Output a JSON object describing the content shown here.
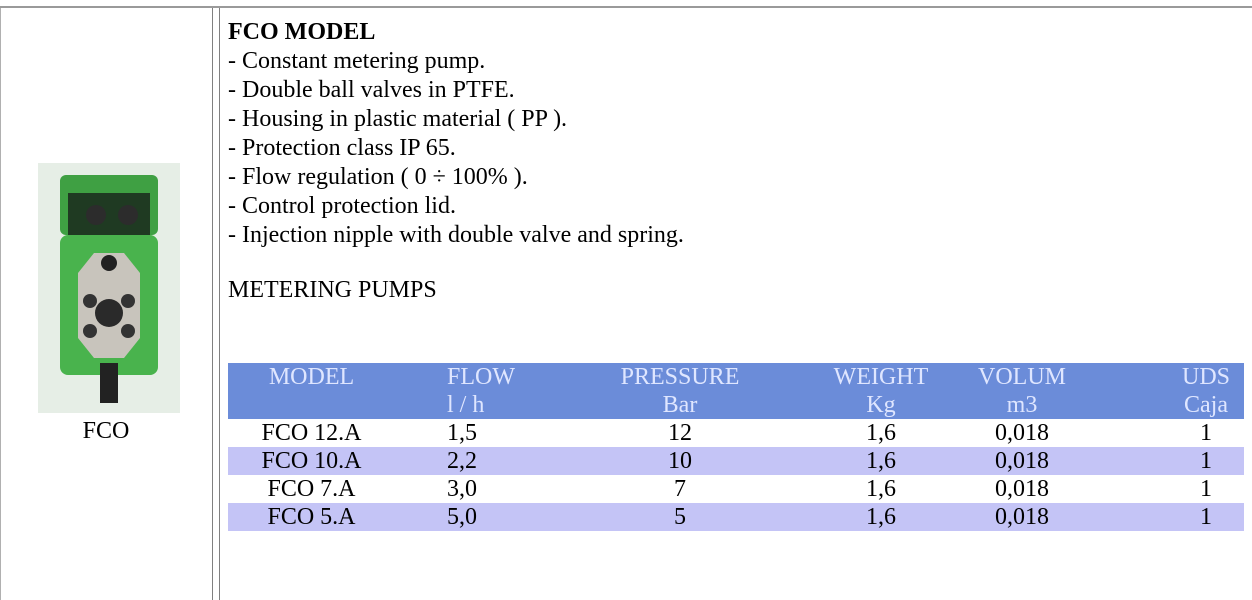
{
  "title": "FCO MODEL",
  "features": [
    "- Constant metering pump.",
    "- Double ball valves in PTFE.",
    "- Housing in plastic material ( PP ).",
    "- Protection class IP 65.",
    "- Flow regulation ( 0 ÷ 100% ).",
    "- Control protection lid.",
    "- Injection nipple with double valve and spring."
  ],
  "image_caption": "FCO",
  "table": {
    "caption": "METERING PUMPS",
    "header": [
      [
        "MODEL",
        "FLOW",
        "PRESSURE",
        "WEIGHT",
        "VOLUM",
        "UDS"
      ],
      [
        "",
        "l / h",
        "Bar",
        "Kg",
        "m3",
        "Caja"
      ]
    ],
    "rows": [
      [
        "FCO 12.A",
        "1,5",
        "12",
        "1,6",
        "0,018",
        "1"
      ],
      [
        "FCO 10.A",
        "2,2",
        "10",
        "1,6",
        "0,018",
        "1"
      ],
      [
        "FCO 7.A",
        "3,0",
        "7",
        "1,6",
        "0,018",
        "1"
      ],
      [
        "FCO 5.A",
        "5,0",
        "5",
        "1,6",
        "0,018",
        "1"
      ]
    ]
  }
}
